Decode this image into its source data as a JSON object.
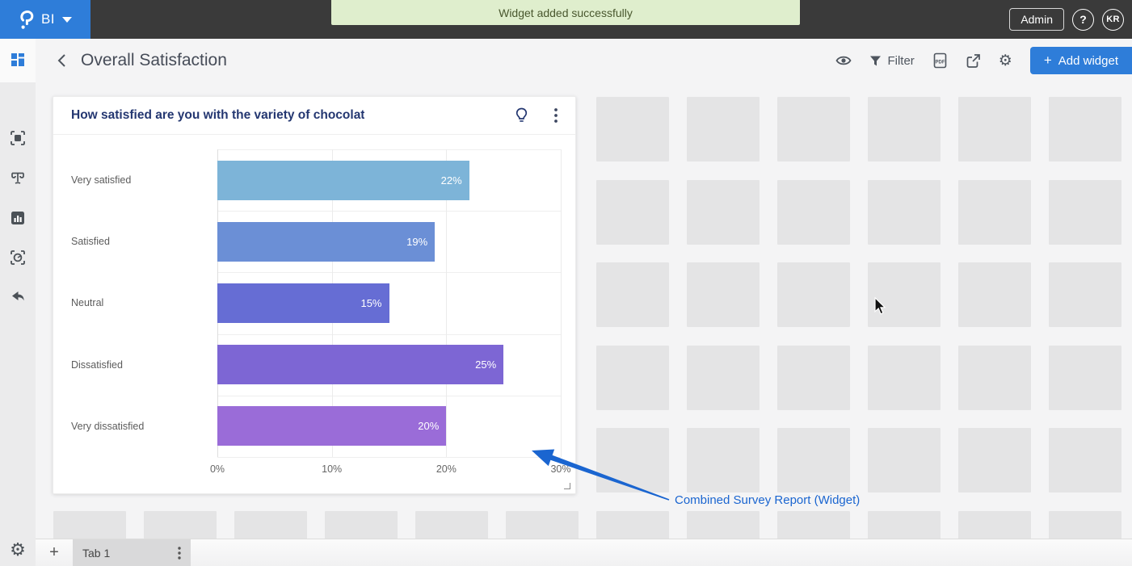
{
  "topbar": {
    "logo_text": "BI",
    "toast_message": "Widget added successfully",
    "admin_label": "Admin",
    "help_label": "?",
    "avatar_initials": "KR"
  },
  "header": {
    "title": "Overall Satisfaction",
    "filter_label": "Filter",
    "pdf_label": "PDF",
    "add_widget_plus": "+",
    "add_widget_label": "Add widget"
  },
  "sidebar": {
    "icons": [
      "dashboard-grid-icon",
      "data-frame-icon",
      "pulse-scale-icon",
      "analytics-bar-icon",
      "widget-frame-icon",
      "undo-arrow-icon",
      "settings-gear-icon"
    ]
  },
  "widget": {
    "title": "How satisfied are you with the variety of chocolat"
  },
  "chart_data": {
    "type": "bar",
    "orientation": "horizontal",
    "title": "How satisfied are you with the variety of chocolat",
    "categories": [
      "Very satisfied",
      "Satisfied",
      "Neutral",
      "Dissatisfied",
      "Very dissatisfied"
    ],
    "values": [
      22,
      19,
      15,
      25,
      20
    ],
    "value_labels": [
      "22%",
      "19%",
      "15%",
      "25%",
      "20%"
    ],
    "bar_colors": [
      "#7db4d8",
      "#6b8fd6",
      "#666dd4",
      "#7d66d4",
      "#9a6cd8"
    ],
    "xlabel": "",
    "ylabel": "",
    "xlim": [
      0,
      30
    ],
    "x_ticks": [
      {
        "value": 0,
        "label": "0%"
      },
      {
        "value": 10,
        "label": "10%"
      },
      {
        "value": 20,
        "label": "20%"
      },
      {
        "value": 30,
        "label": "30%"
      }
    ],
    "grid": true,
    "legend": false
  },
  "annotation": {
    "label": "Combined Survey Report (Widget)"
  },
  "footer": {
    "add_tab_label": "+",
    "tab_label": "Tab 1"
  },
  "colors": {
    "brand_blue": "#2e7dd9",
    "topbar_bg": "#3a3a3a",
    "toast_bg": "#dfeecd",
    "toast_text": "#49572e",
    "canvas_bg": "#f4f4f5",
    "placeholder_gray": "#e4e4e5",
    "widget_title_navy": "#243771",
    "annotation_blue": "#1a65d0"
  }
}
